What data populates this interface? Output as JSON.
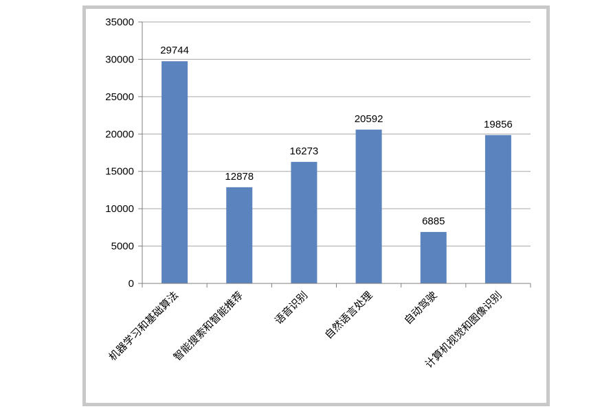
{
  "chart_data": {
    "type": "bar",
    "title": "",
    "xlabel": "",
    "ylabel": "",
    "categories": [
      "机器学习和基础算法",
      "智能搜索和智能推荐",
      "语音识别",
      "自然语言处理",
      "自动驾驶",
      "计算机视觉和图像识别"
    ],
    "values": [
      29744,
      12878,
      16273,
      20592,
      6885,
      19856
    ],
    "data_labels": [
      "29744",
      "12878",
      "16273",
      "20592",
      "6885",
      "19856"
    ],
    "ylim": [
      0,
      35000
    ],
    "yticks": [
      0,
      5000,
      10000,
      15000,
      20000,
      25000,
      30000,
      35000
    ],
    "ytick_labels": [
      "0",
      "5000",
      "10000",
      "15000",
      "20000",
      "25000",
      "30000",
      "35000"
    ],
    "grid": true,
    "bar_color": "#5b83bd",
    "grid_color": "#a6a6a6"
  }
}
